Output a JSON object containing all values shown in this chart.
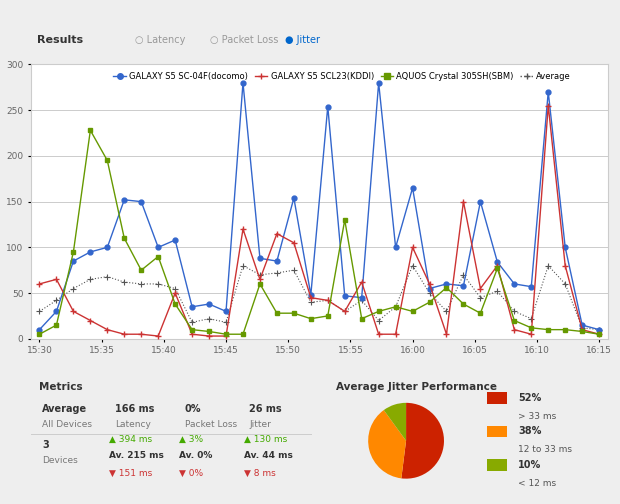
{
  "title_bar": "Results",
  "radio_labels": [
    "Latency",
    "Packet Loss",
    "Jitter"
  ],
  "legend_labels": [
    "GALAXY S5 SC-04F(docomo)",
    "GALAXY S5 SCL23(KDDI)",
    "AQUOS Crystal 305SH(SBM)",
    "Average"
  ],
  "legend_colors": [
    "#3366cc",
    "#cc3333",
    "#669900",
    "#555555"
  ],
  "legend_markers": [
    "o",
    "+",
    "s",
    "+"
  ],
  "x_ticks": [
    "15:30",
    "15:35",
    "15:40",
    "15:45",
    "15:50",
    "15:55",
    "16:00",
    "16:05",
    "16:10",
    "16:15"
  ],
  "y_ticks": [
    0,
    50,
    100,
    150,
    200,
    250,
    300
  ],
  "ylim": [
    0,
    300
  ],
  "blue_data": [
    10,
    30,
    85,
    95,
    100,
    152,
    150,
    100,
    108,
    35,
    38,
    30,
    280,
    88,
    85,
    154,
    48,
    254,
    47,
    45,
    280,
    100,
    165,
    55,
    60,
    58,
    150,
    84,
    60,
    57,
    270,
    100,
    15,
    10
  ],
  "red_data": [
    60,
    65,
    30,
    20,
    10,
    5,
    5,
    3,
    50,
    5,
    3,
    3,
    120,
    65,
    115,
    105,
    45,
    42,
    30,
    62,
    5,
    5,
    100,
    60,
    5,
    150,
    55,
    80,
    10,
    5,
    255,
    80,
    10,
    5
  ],
  "green_data": [
    5,
    15,
    95,
    228,
    195,
    110,
    75,
    90,
    38,
    10,
    8,
    5,
    5,
    60,
    28,
    28,
    22,
    25,
    130,
    22,
    30,
    35,
    30,
    40,
    56,
    38,
    28,
    77,
    20,
    12,
    10,
    10,
    8,
    5
  ],
  "dot_data": [
    30,
    42,
    55,
    65,
    68,
    62,
    60,
    60,
    55,
    18,
    22,
    18,
    80,
    70,
    72,
    75,
    40,
    42,
    30,
    42,
    20,
    35,
    80,
    50,
    30,
    70,
    45,
    52,
    30,
    22,
    80,
    60,
    12,
    10
  ],
  "metrics_title": "Metrics",
  "pie_title": "Average Jitter Performance",
  "pie_sizes": [
    52,
    38,
    10
  ],
  "pie_colors": [
    "#cc2200",
    "#ff8800",
    "#88aa00"
  ],
  "bg_color": "#eeeeee",
  "plot_bg": "#ffffff",
  "grid_color": "#cccccc"
}
